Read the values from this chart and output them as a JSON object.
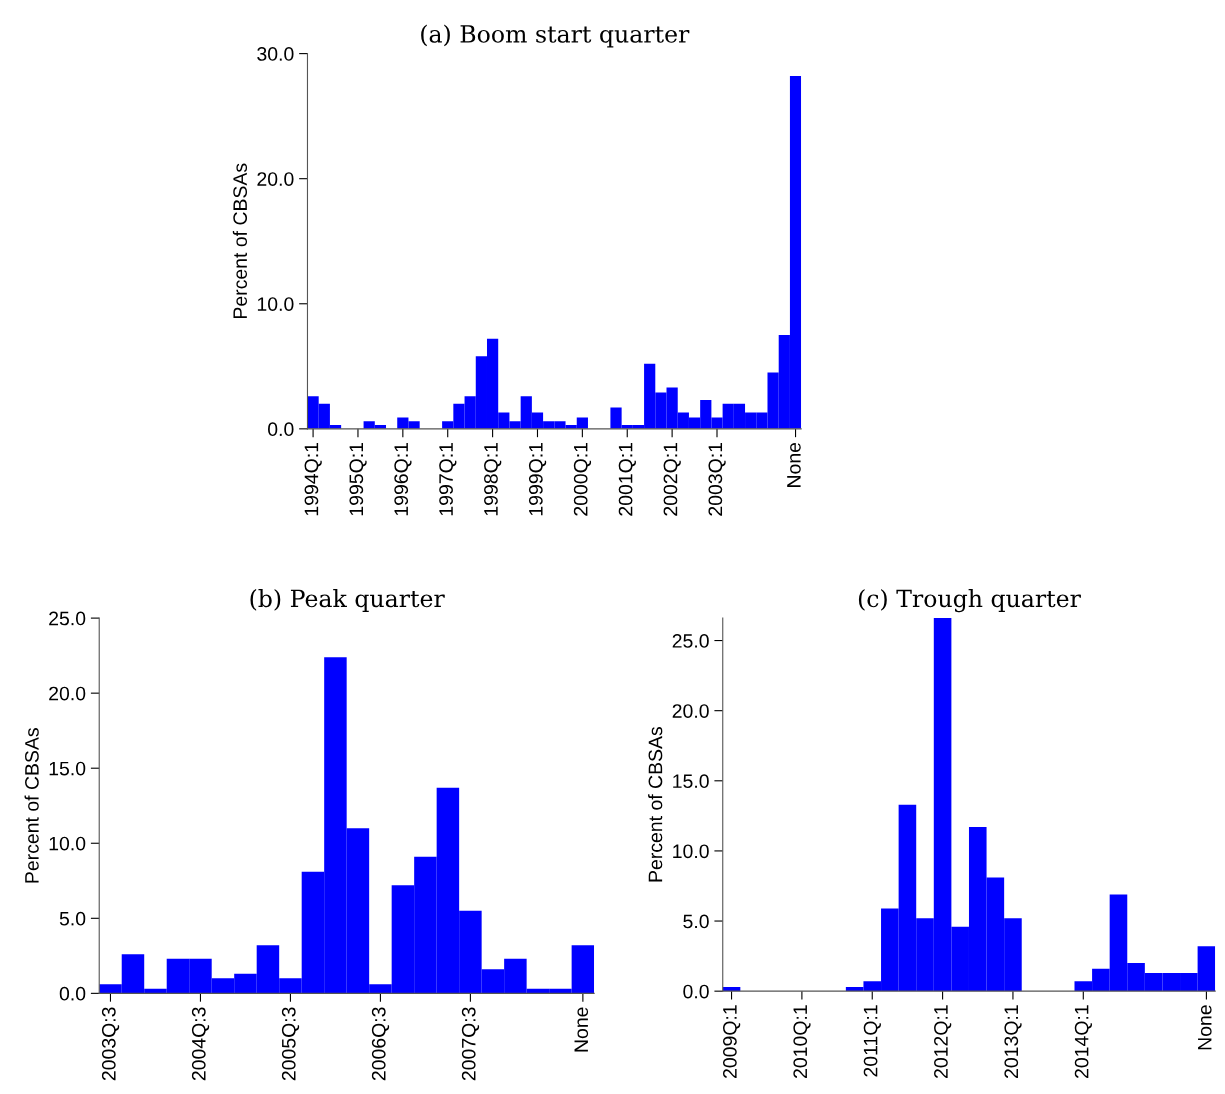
{
  "chart_data": [
    {
      "type": "bar",
      "title": "(a) Boom start quarter",
      "ylabel": "Percent of CBSAs",
      "color": "#0000ff",
      "categories": [
        "1994Q:1",
        null,
        null,
        null,
        "1995Q:1",
        null,
        null,
        null,
        "1996Q:1",
        null,
        null,
        null,
        "1997Q:1",
        null,
        null,
        null,
        "1998Q:1",
        null,
        null,
        null,
        "1999Q:1",
        null,
        null,
        null,
        "2000Q:1",
        null,
        null,
        null,
        "2001Q:1",
        null,
        null,
        null,
        "2002Q:1",
        null,
        null,
        null,
        "2003Q:1",
        null,
        null,
        null,
        null,
        null,
        null,
        "None"
      ],
      "values": [
        2.6,
        2.0,
        0.3,
        0,
        0,
        0.6,
        0.3,
        0,
        0.9,
        0.6,
        0,
        0,
        0.6,
        2.0,
        2.6,
        5.8,
        7.2,
        1.3,
        0.6,
        2.6,
        1.3,
        0.6,
        0.6,
        0.3,
        0.9,
        0,
        0,
        1.7,
        0.3,
        0.3,
        5.2,
        2.9,
        3.3,
        1.3,
        0.9,
        2.3,
        0.9,
        2.0,
        2.0,
        1.3,
        1.3,
        4.5,
        7.5,
        28.2
      ],
      "ylim": [
        0,
        30
      ],
      "yticks": [
        {
          "value": 0,
          "label": "0.0"
        },
        {
          "value": 10,
          "label": "10.0"
        },
        {
          "value": 20,
          "label": "20.0"
        },
        {
          "value": 30,
          "label": "30.0"
        }
      ]
    },
    {
      "type": "bar",
      "title": "(b) Peak quarter",
      "ylabel": "Percent of CBSAs",
      "color": "#0000ff",
      "categories": [
        "2003Q:3",
        null,
        null,
        null,
        "2004Q:3",
        null,
        null,
        null,
        "2005Q:3",
        null,
        null,
        null,
        "2006Q:3",
        null,
        null,
        null,
        "2007Q:3",
        null,
        null,
        null,
        null,
        "None"
      ],
      "values": [
        0.6,
        2.6,
        0.3,
        2.3,
        2.3,
        1.0,
        1.3,
        3.2,
        1.0,
        8.1,
        22.4,
        11.0,
        0.6,
        7.2,
        9.1,
        13.7,
        5.5,
        1.6,
        2.3,
        0.3,
        0.3,
        3.2
      ],
      "ylim": [
        0,
        25
      ],
      "yticks": [
        {
          "value": 0,
          "label": "0.0"
        },
        {
          "value": 5,
          "label": "5.0"
        },
        {
          "value": 10,
          "label": "10.0"
        },
        {
          "value": 15,
          "label": "15.0"
        },
        {
          "value": 20,
          "label": "20.0"
        },
        {
          "value": 25,
          "label": "25.0"
        }
      ]
    },
    {
      "type": "bar",
      "title": "(c) Trough quarter",
      "ylabel": "Percent of CBSAs",
      "color": "#0000ff",
      "categories": [
        "2009Q:1",
        null,
        null,
        null,
        "2010Q:1",
        null,
        null,
        null,
        "2011Q:1",
        null,
        null,
        null,
        "2012Q:1",
        null,
        null,
        null,
        "2013Q:1",
        null,
        null,
        null,
        "2014Q:1",
        null,
        null,
        null,
        null,
        null,
        null,
        "None"
      ],
      "values": [
        0.3,
        0,
        0,
        0,
        0,
        0,
        0,
        0.3,
        0.7,
        5.9,
        13.3,
        5.2,
        26.6,
        4.6,
        11.7,
        8.1,
        5.2,
        0,
        0,
        0,
        0.7,
        1.6,
        6.9,
        2.0,
        1.3,
        1.3,
        1.3,
        3.2
      ],
      "ylim": [
        0,
        26.6
      ],
      "yticks": [
        {
          "value": 0,
          "label": "0.0"
        },
        {
          "value": 5,
          "label": "5.0"
        },
        {
          "value": 10,
          "label": "10.0"
        },
        {
          "value": 15,
          "label": "15.0"
        },
        {
          "value": 20,
          "label": "20.0"
        },
        {
          "value": 25,
          "label": "25.0"
        }
      ]
    }
  ]
}
